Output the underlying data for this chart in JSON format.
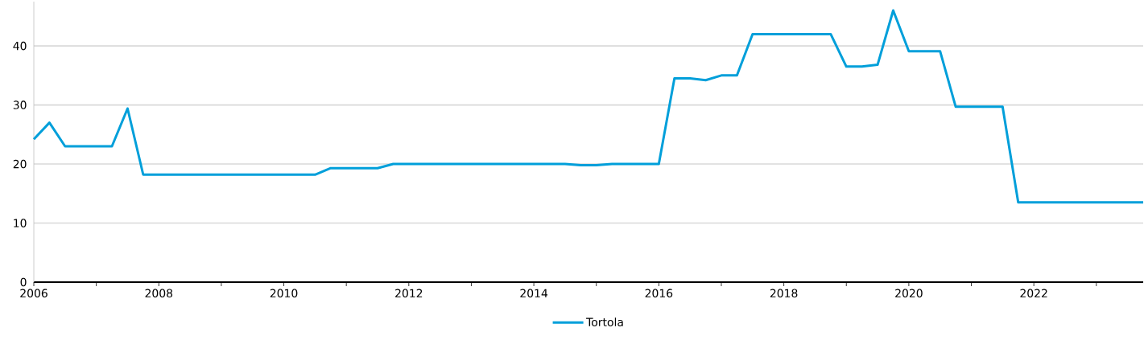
{
  "chart_data": {
    "type": "line",
    "x": [
      2006.0,
      2006.25,
      2006.5,
      2006.75,
      2007.0,
      2007.25,
      2007.5,
      2007.75,
      2008.0,
      2008.25,
      2008.5,
      2008.75,
      2009.0,
      2009.25,
      2009.5,
      2009.75,
      2010.0,
      2010.25,
      2010.5,
      2010.75,
      2011.0,
      2011.25,
      2011.5,
      2011.75,
      2012.0,
      2012.25,
      2012.5,
      2012.75,
      2013.0,
      2013.25,
      2013.5,
      2013.75,
      2014.0,
      2014.25,
      2014.5,
      2014.75,
      2015.0,
      2015.25,
      2015.5,
      2015.75,
      2016.0,
      2016.25,
      2016.5,
      2016.75,
      2017.0,
      2017.25,
      2017.5,
      2017.75,
      2018.0,
      2018.25,
      2018.5,
      2018.75,
      2019.0,
      2019.25,
      2019.5,
      2019.75,
      2020.0,
      2020.25,
      2020.5,
      2020.75,
      2021.0,
      2021.25,
      2021.5,
      2021.75,
      2022.0,
      2022.25,
      2022.5,
      2022.75,
      2023.0,
      2023.25,
      2023.5,
      2023.75
    ],
    "series": [
      {
        "name": "Tortola",
        "color": "#009fda",
        "values": [
          24.2,
          27,
          23,
          23,
          23,
          23,
          29.4,
          18.2,
          18.2,
          18.2,
          18.2,
          18.2,
          18.2,
          18.2,
          18.2,
          18.2,
          18.2,
          18.2,
          18.2,
          19.3,
          19.3,
          19.3,
          19.3,
          20,
          20,
          20,
          20,
          20,
          20,
          20,
          20,
          20,
          20,
          20,
          20,
          19.8,
          19.8,
          20,
          20,
          20,
          20,
          34.5,
          34.5,
          34.2,
          35,
          35,
          42,
          42,
          42,
          42,
          42,
          42,
          36.5,
          36.5,
          36.8,
          46,
          39.1,
          39.1,
          39.1,
          29.7,
          29.7,
          29.7,
          29.7,
          13.5,
          13.5,
          13.5,
          13.5,
          13.5,
          13.5,
          13.5,
          13.5,
          13.5
        ]
      }
    ],
    "xlim": [
      2006,
      2023.75
    ],
    "xticks": [
      2006,
      {
        "value": 2007,
        "label": null
      },
      2008,
      {
        "value": 2009,
        "label": null
      },
      2010,
      {
        "value": 2011,
        "label": null
      },
      2012,
      {
        "value": 2013,
        "label": null
      },
      2014,
      {
        "value": 2015,
        "label": null
      },
      2016,
      {
        "value": 2017,
        "label": null
      },
      2018,
      {
        "value": 2019,
        "label": null
      },
      2020,
      {
        "value": 2021,
        "label": null
      },
      2022,
      {
        "value": 2023,
        "label": null
      }
    ],
    "ylim": [
      0,
      47.5
    ],
    "yticks": [
      0,
      10,
      20,
      30,
      40
    ],
    "grid": "y",
    "legend": "bottom"
  }
}
